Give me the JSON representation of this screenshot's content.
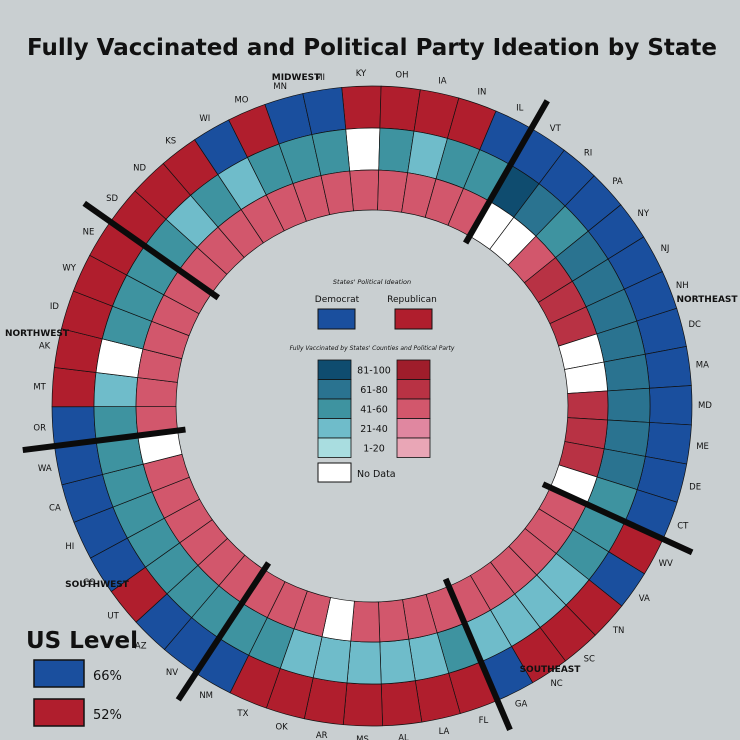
{
  "chart_data": {
    "type": "radial",
    "title": "Fully Vaccinated and Political Party Ideation by State",
    "states": [
      {
        "code": "KY",
        "party": "R",
        "dem": 0,
        "rep": 3
      },
      {
        "code": "OH",
        "party": "R",
        "dem": 3,
        "rep": 3
      },
      {
        "code": "IA",
        "party": "R",
        "dem": 2,
        "rep": 3
      },
      {
        "code": "IN",
        "party": "R",
        "dem": 3,
        "rep": 3
      },
      {
        "code": "IL",
        "party": "D",
        "dem": 3,
        "rep": 3
      },
      {
        "code": "VT",
        "party": "D",
        "dem": 5,
        "rep": 0
      },
      {
        "code": "RI",
        "party": "D",
        "dem": 4,
        "rep": 0
      },
      {
        "code": "PA",
        "party": "D",
        "dem": 3,
        "rep": 3
      },
      {
        "code": "NY",
        "party": "D",
        "dem": 4,
        "rep": 4
      },
      {
        "code": "NJ",
        "party": "D",
        "dem": 4,
        "rep": 4
      },
      {
        "code": "NH",
        "party": "D",
        "dem": 4,
        "rep": 4
      },
      {
        "code": "DC",
        "party": "D",
        "dem": 4,
        "rep": 0
      },
      {
        "code": "MA",
        "party": "D",
        "dem": 4,
        "rep": 0
      },
      {
        "code": "MD",
        "party": "D",
        "dem": 4,
        "rep": 4
      },
      {
        "code": "ME",
        "party": "D",
        "dem": 4,
        "rep": 4
      },
      {
        "code": "DE",
        "party": "D",
        "dem": 4,
        "rep": 4
      },
      {
        "code": "CT",
        "party": "D",
        "dem": 3,
        "rep": 0
      },
      {
        "code": "WV",
        "party": "R",
        "dem": 3,
        "rep": 3
      },
      {
        "code": "VA",
        "party": "D",
        "dem": 3,
        "rep": 3
      },
      {
        "code": "TN",
        "party": "R",
        "dem": 2,
        "rep": 3
      },
      {
        "code": "SC",
        "party": "R",
        "dem": 2,
        "rep": 3
      },
      {
        "code": "NC",
        "party": "R",
        "dem": 2,
        "rep": 3
      },
      {
        "code": "GA",
        "party": "D",
        "dem": 2,
        "rep": 3
      },
      {
        "code": "FL",
        "party": "R",
        "dem": 3,
        "rep": 3
      },
      {
        "code": "LA",
        "party": "R",
        "dem": 2,
        "rep": 3
      },
      {
        "code": "AL",
        "party": "R",
        "dem": 2,
        "rep": 3
      },
      {
        "code": "MS",
        "party": "R",
        "dem": 2,
        "rep": 3
      },
      {
        "code": "AR",
        "party": "R",
        "dem": 2,
        "rep": 0
      },
      {
        "code": "OK",
        "party": "R",
        "dem": 2,
        "rep": 3
      },
      {
        "code": "TX",
        "party": "R",
        "dem": 3,
        "rep": 3
      },
      {
        "code": "NM",
        "party": "D",
        "dem": 3,
        "rep": 3
      },
      {
        "code": "NV",
        "party": "D",
        "dem": 3,
        "rep": 3
      },
      {
        "code": "AZ",
        "party": "D",
        "dem": 3,
        "rep": 3
      },
      {
        "code": "UT",
        "party": "R",
        "dem": 3,
        "rep": 3
      },
      {
        "code": "CO",
        "party": "D",
        "dem": 3,
        "rep": 3
      },
      {
        "code": "HI",
        "party": "D",
        "dem": 3,
        "rep": 3
      },
      {
        "code": "CA",
        "party": "D",
        "dem": 3,
        "rep": 3
      },
      {
        "code": "WA",
        "party": "D",
        "dem": 3,
        "rep": 0
      },
      {
        "code": "OR",
        "party": "D",
        "dem": 3,
        "rep": 3
      },
      {
        "code": "MT",
        "party": "R",
        "dem": 2,
        "rep": 3
      },
      {
        "code": "AK",
        "party": "R",
        "dem": 0,
        "rep": 3
      },
      {
        "code": "ID",
        "party": "R",
        "dem": 3,
        "rep": 3
      },
      {
        "code": "WY",
        "party": "R",
        "dem": 3,
        "rep": 3
      },
      {
        "code": "NE",
        "party": "R",
        "dem": 3,
        "rep": 3
      },
      {
        "code": "SD",
        "party": "R",
        "dem": 3,
        "rep": 3
      },
      {
        "code": "ND",
        "party": "R",
        "dem": 2,
        "rep": 3
      },
      {
        "code": "KS",
        "party": "R",
        "dem": 3,
        "rep": 3
      },
      {
        "code": "WI",
        "party": "D",
        "dem": 2,
        "rep": 3
      },
      {
        "code": "MO",
        "party": "R",
        "dem": 3,
        "rep": 3
      },
      {
        "code": "MN",
        "party": "D",
        "dem": 3,
        "rep": 3
      },
      {
        "code": "MI",
        "party": "D",
        "dem": 3,
        "rep": 3
      }
    ],
    "regions": [
      {
        "name": "MIDWEST"
      },
      {
        "name": "NORTHEAST"
      },
      {
        "name": "SOUTHEAST"
      },
      {
        "name": "SOUTHWEST"
      },
      {
        "name": "NORTHWEST"
      }
    ],
    "region_boundaries_after": [
      "IL",
      "CT",
      "GA",
      "NM",
      "WA",
      "NE"
    ],
    "legend": {
      "ideation_title": "States' Political Ideation",
      "democrat": "Democrat",
      "republican": "Republican",
      "vaccinated_title": "Fully Vaccinated by States' Counties and Political Party",
      "bins": [
        "81-100",
        "61-80",
        "41-60",
        "21-40",
        "1-20"
      ],
      "no_data": "No Data"
    },
    "us_level": {
      "title": "US Level",
      "democrat_value": "66%",
      "republican_value": "52%"
    }
  },
  "colors": {
    "background": "#c9cfd1",
    "democrat": "#1a4f9e",
    "republican": "#b01e2d",
    "dem_scale": [
      "#ffffff",
      "#a9dde0",
      "#6fbcca",
      "#3e93a0",
      "#2a7390",
      "#0f4c6f"
    ],
    "rep_scale": [
      "#ffffff",
      "#e9a6b6",
      "#e087a0",
      "#d2576c",
      "#b83244",
      "#9f1d2b"
    ],
    "separator": "#0b0b0b"
  }
}
